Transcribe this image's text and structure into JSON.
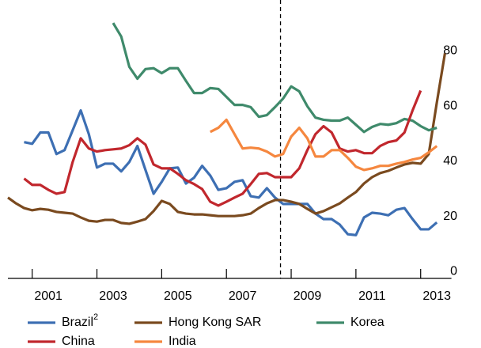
{
  "chart_data": {
    "type": "line",
    "x": [
      2000.25,
      2000.5,
      2000.75,
      2001,
      2001.25,
      2001.5,
      2001.75,
      2002,
      2002.25,
      2002.5,
      2002.75,
      2003,
      2003.25,
      2003.5,
      2003.75,
      2004,
      2004.25,
      2004.5,
      2004.75,
      2005,
      2005.25,
      2005.5,
      2005.75,
      2006,
      2006.25,
      2006.5,
      2006.75,
      2007,
      2007.25,
      2007.5,
      2007.75,
      2008,
      2008.25,
      2008.5,
      2008.75,
      2009,
      2009.25,
      2009.5,
      2009.75,
      2010,
      2010.25,
      2010.5,
      2010.75,
      2011,
      2011.25,
      2011.5,
      2011.75,
      2012,
      2012.25,
      2012.5,
      2012.75,
      2013,
      2013.25,
      2013.5,
      2013.75
    ],
    "xlim": [
      2000.25,
      2013.95
    ],
    "xticks": [
      {
        "value": 2001,
        "label": "2001"
      },
      {
        "value": 2003,
        "label": "2003"
      },
      {
        "value": 2005,
        "label": "2005"
      },
      {
        "value": 2007,
        "label": "2007"
      },
      {
        "value": 2009,
        "label": "2009"
      },
      {
        "value": 2011,
        "label": "2011"
      },
      {
        "value": 2013,
        "label": "2013"
      }
    ],
    "ylim": [
      -2.5,
      97
    ],
    "yticks": [
      0,
      20,
      40,
      60,
      80
    ],
    "vline": 2008.67,
    "series": [
      {
        "name": "Brazil",
        "superscript": "2",
        "color": "#3d6fb3",
        "values": [
          null,
          null,
          46.9,
          46.3,
          50.4,
          50.4,
          42.6,
          44.0,
          51.2,
          58.4,
          49.8,
          37.7,
          39.1,
          39.1,
          36.3,
          39.7,
          45.5,
          36.8,
          28.2,
          32.5,
          37.4,
          37.7,
          31.9,
          34.0,
          38.3,
          34.8,
          29.6,
          30.2,
          32.5,
          33.1,
          27.3,
          26.8,
          30.2,
          26.8,
          24.5,
          24.5,
          24.5,
          24.5,
          21.0,
          19.0,
          19.0,
          17.0,
          13.5,
          13.2,
          19.6,
          21.3,
          21.0,
          20.4,
          22.4,
          23.0,
          19.0,
          15.3,
          15.3,
          17.8,
          null
        ]
      },
      {
        "name": "Hong Kong SAR",
        "color": "#7a4a1f",
        "values": [
          26.8,
          24.7,
          23.0,
          22.2,
          22.7,
          22.4,
          21.6,
          21.3,
          21.0,
          19.6,
          18.4,
          18.1,
          18.7,
          18.7,
          17.6,
          17.3,
          18.1,
          19.0,
          21.9,
          25.6,
          24.5,
          21.6,
          21.0,
          20.7,
          20.7,
          20.4,
          20.1,
          20.1,
          20.1,
          20.4,
          21.0,
          23.0,
          24.7,
          25.9,
          25.9,
          25.3,
          24.5,
          22.7,
          21.0,
          21.9,
          23.3,
          24.7,
          26.8,
          28.8,
          31.9,
          34.2,
          35.7,
          36.5,
          37.7,
          38.8,
          39.4,
          39.1,
          42.6,
          61.3,
          79.1
        ]
      },
      {
        "name": "Korea",
        "color": "#3f8a6b",
        "values": [
          null,
          null,
          null,
          null,
          null,
          null,
          null,
          null,
          null,
          null,
          null,
          null,
          null,
          90.1,
          85.2,
          74.2,
          69.9,
          73.4,
          73.7,
          71.9,
          73.7,
          73.7,
          69.1,
          64.7,
          64.7,
          66.5,
          66.2,
          63.3,
          60.4,
          60.4,
          59.6,
          56.1,
          56.7,
          59.6,
          62.7,
          67.1,
          65.3,
          59.9,
          55.8,
          55.0,
          54.7,
          54.7,
          55.8,
          53.2,
          50.6,
          52.4,
          53.5,
          53.2,
          53.8,
          55.3,
          54.7,
          52.7,
          51.2,
          52.1,
          null
        ]
      },
      {
        "name": "China",
        "color": "#c1272d",
        "values": [
          null,
          null,
          33.7,
          31.4,
          31.4,
          29.6,
          28.2,
          28.8,
          39.7,
          48.3,
          44.6,
          43.5,
          44.0,
          44.3,
          44.6,
          45.8,
          48.3,
          46.0,
          38.8,
          37.4,
          37.4,
          35.4,
          33.1,
          31.7,
          29.9,
          25.3,
          23.9,
          25.3,
          26.8,
          28.2,
          31.7,
          35.4,
          35.7,
          34.2,
          34.2,
          34.2,
          37.4,
          44.0,
          49.8,
          52.7,
          50.4,
          44.6,
          43.5,
          44.0,
          42.9,
          42.9,
          45.5,
          46.9,
          47.5,
          50.4,
          58.4,
          65.6,
          null,
          null,
          null
        ]
      },
      {
        "name": "India",
        "color": "#f5873f",
        "values": [
          null,
          null,
          null,
          null,
          null,
          null,
          null,
          null,
          null,
          null,
          null,
          null,
          null,
          null,
          null,
          null,
          null,
          null,
          null,
          null,
          null,
          null,
          null,
          null,
          null,
          50.6,
          52.1,
          55.0,
          49.8,
          44.6,
          44.9,
          44.6,
          43.5,
          41.7,
          42.6,
          48.9,
          52.1,
          48.3,
          41.7,
          41.7,
          44.0,
          44.0,
          41.2,
          38.0,
          36.8,
          37.4,
          38.3,
          38.3,
          39.1,
          39.7,
          40.6,
          41.2,
          43.2,
          45.5,
          null
        ]
      }
    ]
  }
}
